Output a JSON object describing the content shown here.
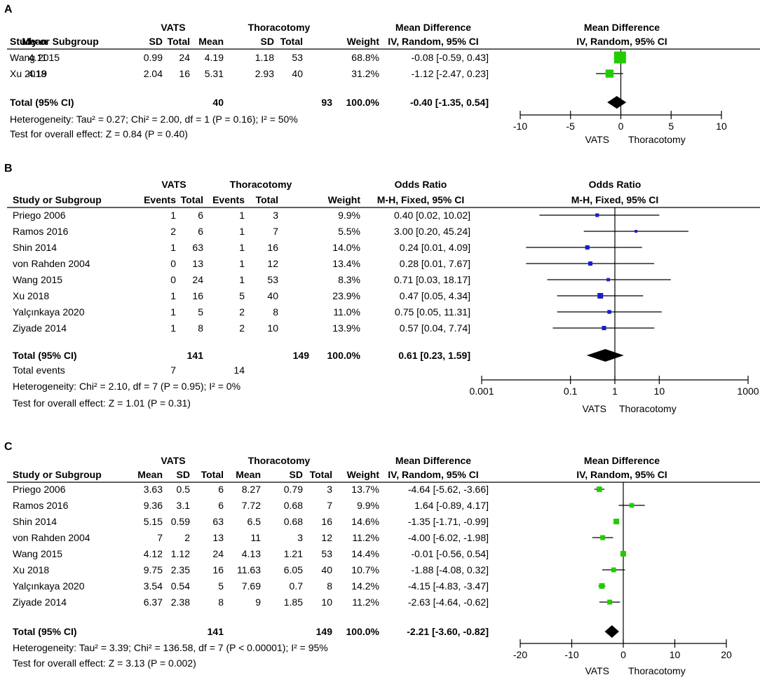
{
  "chart_data": [
    {
      "type": "forest",
      "panel_label": "A",
      "measure": "Mean Difference",
      "method": "IV, Random, 95% CI",
      "group1": "VATS",
      "group2": "Thoracotomy",
      "headers": [
        "Study or Subgroup",
        "Mean",
        "SD",
        "Total",
        "Mean",
        "SD",
        "Total",
        "Weight"
      ],
      "studies": [
        {
          "name": "Wang 2015",
          "cols": [
            "4.11",
            "0.99",
            "24",
            "4.19",
            "1.18",
            "53"
          ],
          "weight": "68.8%",
          "ci_text": "-0.08 [-0.59, 0.43]",
          "est": -0.08,
          "lo": -0.59,
          "hi": 0.43,
          "w": 68.8
        },
        {
          "name": "Xu 2018",
          "cols": [
            "4.19",
            "2.04",
            "16",
            "5.31",
            "2.93",
            "40"
          ],
          "weight": "31.2%",
          "ci_text": "-1.12 [-2.47, 0.23]",
          "est": -1.12,
          "lo": -2.47,
          "hi": 0.23,
          "w": 31.2
        }
      ],
      "total": {
        "label": "Total (95% CI)",
        "n1": "40",
        "n2": "93",
        "weight": "100.0%",
        "ci_text": "-0.40 [-1.35, 0.54]",
        "est": -0.4,
        "lo": -1.35,
        "hi": 0.54
      },
      "heterogeneity": "Heterogeneity: Tau² = 0.27; Chi² = 2.00, df = 1 (P = 0.16); I² = 50%",
      "overall": "Test for overall effect: Z = 0.84 (P = 0.40)",
      "axis": {
        "scale": "linear",
        "min": -10,
        "max": 10,
        "ticks": [
          -10,
          -5,
          0,
          5,
          10
        ],
        "tick_labels": [
          "-10",
          "-5",
          "0",
          "5",
          "10"
        ]
      },
      "favours": [
        "VATS",
        "Thoracotomy"
      ],
      "marker_color": "#22cc00"
    },
    {
      "type": "forest",
      "panel_label": "B",
      "measure": "Odds Ratio",
      "method": "M-H, Fixed, 95% CI",
      "group1": "VATS",
      "group2": "Thoracotomy",
      "headers": [
        "Study or Subgroup",
        "Events",
        "Total",
        "Events",
        "Total",
        "Weight"
      ],
      "studies": [
        {
          "name": "Priego 2006",
          "cols": [
            "1",
            "6",
            "1",
            "3"
          ],
          "weight": "9.9%",
          "ci_text": "0.40 [0.02, 10.02]",
          "est": 0.4,
          "lo": 0.02,
          "hi": 10.02,
          "w": 9.9
        },
        {
          "name": "Ramos 2016",
          "cols": [
            "2",
            "6",
            "1",
            "7"
          ],
          "weight": "5.5%",
          "ci_text": "3.00 [0.20, 45.24]",
          "est": 3.0,
          "lo": 0.2,
          "hi": 45.24,
          "w": 5.5
        },
        {
          "name": "Shin 2014",
          "cols": [
            "1",
            "63",
            "1",
            "16"
          ],
          "weight": "14.0%",
          "ci_text": "0.24 [0.01, 4.09]",
          "est": 0.24,
          "lo": 0.01,
          "hi": 4.09,
          "w": 14.0
        },
        {
          "name": "von Rahden 2004",
          "cols": [
            "0",
            "13",
            "1",
            "12"
          ],
          "weight": "13.4%",
          "ci_text": "0.28 [0.01, 7.67]",
          "est": 0.28,
          "lo": 0.01,
          "hi": 7.67,
          "w": 13.4
        },
        {
          "name": "Wang 2015",
          "cols": [
            "0",
            "24",
            "1",
            "53"
          ],
          "weight": "8.3%",
          "ci_text": "0.71 [0.03, 18.17]",
          "est": 0.71,
          "lo": 0.03,
          "hi": 18.17,
          "w": 8.3
        },
        {
          "name": "Xu 2018",
          "cols": [
            "1",
            "16",
            "5",
            "40"
          ],
          "weight": "23.9%",
          "ci_text": "0.47 [0.05, 4.34]",
          "est": 0.47,
          "lo": 0.05,
          "hi": 4.34,
          "w": 23.9
        },
        {
          "name": "Yalçınkaya 2020",
          "cols": [
            "1",
            "5",
            "2",
            "8"
          ],
          "weight": "11.0%",
          "ci_text": "0.75 [0.05, 11.31]",
          "est": 0.75,
          "lo": 0.05,
          "hi": 11.31,
          "w": 11.0
        },
        {
          "name": "Ziyade 2014",
          "cols": [
            "1",
            "8",
            "2",
            "10"
          ],
          "weight": "13.9%",
          "ci_text": "0.57 [0.04, 7.74]",
          "est": 0.57,
          "lo": 0.04,
          "hi": 7.74,
          "w": 13.9
        }
      ],
      "total": {
        "label": "Total (95% CI)",
        "n1": "141",
        "n2": "149",
        "weight": "100.0%",
        "ci_text": "0.61 [0.23, 1.59]",
        "est": 0.61,
        "lo": 0.23,
        "hi": 1.59
      },
      "total_events": {
        "label": "Total events",
        "e1": "7",
        "e2": "14"
      },
      "heterogeneity": "Heterogeneity: Chi² = 2.10, df = 7 (P = 0.95); I² = 0%",
      "overall": "Test for overall effect: Z = 1.01 (P = 0.31)",
      "axis": {
        "scale": "log",
        "min": 0.001,
        "max": 1000,
        "ticks": [
          0.001,
          0.1,
          1,
          10,
          1000
        ],
        "tick_labels": [
          "0.001",
          "0.1",
          "1",
          "10",
          "1000"
        ]
      },
      "favours": [
        "VATS",
        "Thoracotomy"
      ],
      "marker_color": "#1c1cc8"
    },
    {
      "type": "forest",
      "panel_label": "C",
      "measure": "Mean Difference",
      "method": "IV, Random, 95% CI",
      "group1": "VATS",
      "group2": "Thoracotomy",
      "headers": [
        "Study or Subgroup",
        "Mean",
        "SD",
        "Total",
        "Mean",
        "SD",
        "Total",
        "Weight"
      ],
      "studies": [
        {
          "name": "Priego 2006",
          "cols": [
            "3.63",
            "0.5",
            "6",
            "8.27",
            "0.79",
            "3"
          ],
          "weight": "13.7%",
          "ci_text": "-4.64 [-5.62, -3.66]",
          "est": -4.64,
          "lo": -5.62,
          "hi": -3.66,
          "w": 13.7
        },
        {
          "name": "Ramos 2016",
          "cols": [
            "9.36",
            "3.1",
            "6",
            "7.72",
            "0.68",
            "7"
          ],
          "weight": "9.9%",
          "ci_text": "1.64 [-0.89, 4.17]",
          "est": 1.64,
          "lo": -0.89,
          "hi": 4.17,
          "w": 9.9
        },
        {
          "name": "Shin 2014",
          "cols": [
            "5.15",
            "0.59",
            "63",
            "6.5",
            "0.68",
            "16"
          ],
          "weight": "14.6%",
          "ci_text": "-1.35 [-1.71, -0.99]",
          "est": -1.35,
          "lo": -1.71,
          "hi": -0.99,
          "w": 14.6
        },
        {
          "name": "von Rahden 2004",
          "cols": [
            "7",
            "2",
            "13",
            "11",
            "3",
            "12"
          ],
          "weight": "11.2%",
          "ci_text": "-4.00 [-6.02, -1.98]",
          "est": -4.0,
          "lo": -6.02,
          "hi": -1.98,
          "w": 11.2
        },
        {
          "name": "Wang 2015",
          "cols": [
            "4.12",
            "1.12",
            "24",
            "4.13",
            "1.21",
            "53"
          ],
          "weight": "14.4%",
          "ci_text": "-0.01 [-0.56, 0.54]",
          "est": -0.01,
          "lo": -0.56,
          "hi": 0.54,
          "w": 14.4
        },
        {
          "name": "Xu 2018",
          "cols": [
            "9.75",
            "2.35",
            "16",
            "11.63",
            "6.05",
            "40"
          ],
          "weight": "10.7%",
          "ci_text": "-1.88 [-4.08, 0.32]",
          "est": -1.88,
          "lo": -4.08,
          "hi": 0.32,
          "w": 10.7
        },
        {
          "name": "Yalçınkaya 2020",
          "cols": [
            "3.54",
            "0.54",
            "5",
            "7.69",
            "0.7",
            "8"
          ],
          "weight": "14.2%",
          "ci_text": "-4.15 [-4.83, -3.47]",
          "est": -4.15,
          "lo": -4.83,
          "hi": -3.47,
          "w": 14.2
        },
        {
          "name": "Ziyade 2014",
          "cols": [
            "6.37",
            "2.38",
            "8",
            "9",
            "1.85",
            "10"
          ],
          "weight": "11.2%",
          "ci_text": "-2.63 [-4.64, -0.62]",
          "est": -2.63,
          "lo": -4.64,
          "hi": -0.62,
          "w": 11.2
        }
      ],
      "total": {
        "label": "Total (95% CI)",
        "n1": "141",
        "n2": "149",
        "weight": "100.0%",
        "ci_text": "-2.21 [-3.60, -0.82]",
        "est": -2.21,
        "lo": -3.6,
        "hi": -0.82
      },
      "heterogeneity": "Heterogeneity: Tau² = 3.39; Chi² = 136.58, df = 7 (P < 0.00001); I² = 95%",
      "overall": "Test for overall effect: Z = 3.13 (P = 0.002)",
      "axis": {
        "scale": "linear",
        "min": -20,
        "max": 20,
        "ticks": [
          -20,
          -10,
          0,
          10,
          20
        ],
        "tick_labels": [
          "-20",
          "-10",
          "0",
          "10",
          "20"
        ]
      },
      "favours": [
        "VATS",
        "Thoracotomy"
      ],
      "marker_color": "#22cc00"
    }
  ]
}
